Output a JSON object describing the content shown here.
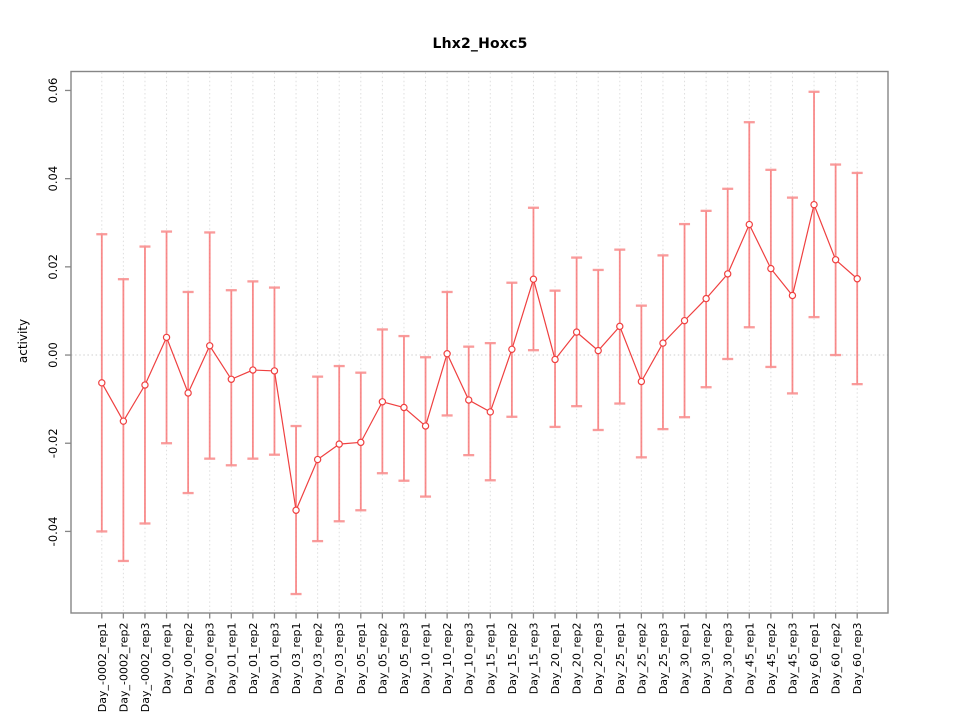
{
  "chart_data": {
    "type": "scatter",
    "title": "Lhx2_Hoxc5",
    "xlabel": "",
    "ylabel": "activity",
    "legend_position": "none",
    "grid": "dotted vertical gridline per category; dotted horizontal line at y=0",
    "ylim": [
      -0.0585,
      0.0643
    ],
    "yticks": [
      -0.04,
      -0.02,
      0.0,
      0.02,
      0.04,
      0.06
    ],
    "ytick_labels": [
      "-0.04",
      "-0.02",
      "0.00",
      "0.02",
      "0.04",
      "0.06"
    ],
    "categories": [
      "Day_-0002_rep1",
      "Day_-0002_rep2",
      "Day_-0002_rep3",
      "Day_00_rep1",
      "Day_00_rep2",
      "Day_00_rep3",
      "Day_01_rep1",
      "Day_01_rep2",
      "Day_01_rep3",
      "Day_03_rep1",
      "Day_03_rep2",
      "Day_03_rep3",
      "Day_05_rep1",
      "Day_05_rep2",
      "Day_05_rep3",
      "Day_10_rep1",
      "Day_10_rep2",
      "Day_10_rep3",
      "Day_15_rep1",
      "Day_15_rep2",
      "Day_15_rep3",
      "Day_20_rep1",
      "Day_20_rep2",
      "Day_20_rep3",
      "Day_25_rep1",
      "Day_25_rep2",
      "Day_25_rep3",
      "Day_30_rep1",
      "Day_30_rep2",
      "Day_30_rep3",
      "Day_45_rep1",
      "Day_45_rep2",
      "Day_45_rep3",
      "Day_60_rep1",
      "Day_60_rep2",
      "Day_60_rep3"
    ],
    "series": [
      {
        "name": "activity",
        "marker": "open-circle",
        "connected": true,
        "values": [
          -0.0063,
          -0.015,
          -0.0068,
          0.004,
          -0.0086,
          0.0021,
          -0.0055,
          -0.0034,
          -0.0036,
          -0.0352,
          -0.0237,
          -0.0202,
          -0.0198,
          -0.0106,
          -0.0119,
          -0.0161,
          0.0003,
          -0.0102,
          -0.0129,
          0.0013,
          0.0172,
          -0.001,
          0.0052,
          0.001,
          0.0065,
          -0.006,
          0.0027,
          0.0078,
          0.0128,
          0.0184,
          0.0296,
          0.0196,
          0.0135,
          0.0341,
          0.0216,
          0.0173
        ],
        "error_low": [
          -0.04,
          -0.0467,
          -0.0382,
          -0.02,
          -0.0313,
          -0.0235,
          -0.025,
          -0.0235,
          -0.0226,
          -0.0542,
          -0.0422,
          -0.0377,
          -0.0352,
          -0.0268,
          -0.0285,
          -0.0321,
          -0.0137,
          -0.0227,
          -0.0284,
          -0.014,
          0.0011,
          -0.0163,
          -0.0116,
          -0.017,
          -0.011,
          -0.0232,
          -0.0168,
          -0.0141,
          -0.0073,
          -0.0009,
          0.0063,
          -0.0027,
          -0.0087,
          0.0086,
          0.0,
          -0.0066
        ],
        "error_high": [
          0.0274,
          0.0172,
          0.0246,
          0.028,
          0.0143,
          0.0278,
          0.0147,
          0.0167,
          0.0153,
          -0.0161,
          -0.0049,
          -0.0025,
          -0.004,
          0.0058,
          0.0043,
          -0.0005,
          0.0143,
          0.0019,
          0.0027,
          0.0164,
          0.0334,
          0.0146,
          0.0221,
          0.0193,
          0.0239,
          0.0112,
          0.0226,
          0.0297,
          0.0327,
          0.0377,
          0.0528,
          0.042,
          0.0357,
          0.0597,
          0.0432,
          0.0413
        ]
      }
    ],
    "colors": {
      "point": "#ef4040",
      "line": "#ef4040",
      "error_bar": "#f87272",
      "error_cap": "#f89090",
      "gridline": "#dedede",
      "zero_line": "#cfcfcf",
      "frame": "#868686",
      "text": "#000000",
      "background": "#ffffff"
    }
  }
}
